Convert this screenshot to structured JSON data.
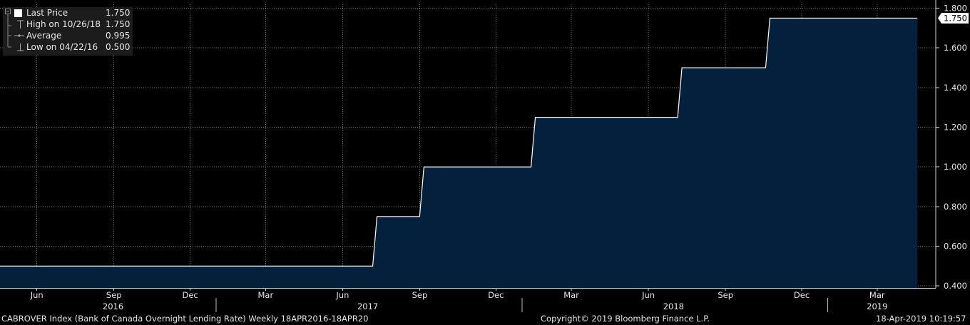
{
  "legend": [
    {
      "label": "Last Price",
      "value": "1.750",
      "icon": "square-icon"
    },
    {
      "label": "High on 10/26/18",
      "value": "1.750",
      "icon": "high-marker-icon"
    },
    {
      "label": "Average",
      "value": "0.995",
      "icon": "average-line-icon"
    },
    {
      "label": "Low on 04/22/16",
      "value": "0.500",
      "icon": "low-marker-icon"
    }
  ],
  "footer": {
    "left": "CABROVER Index (Bank of Canada Overnight Lending Rate)  Weekly 18APR2016-18APR20",
    "center": "Copyright© 2019 Bloomberg Finance L.P.",
    "right": "18-Apr-2019 10:19:57"
  },
  "colors": {
    "background": "#000000",
    "fill": "#05203d",
    "line": "#ffffff",
    "grid": "#7a7a7a",
    "legend_bg": "#1c1c1c"
  },
  "chart_data": {
    "type": "area",
    "step": true,
    "series": [
      {
        "name": "Last Price",
        "points": [
          [
            "2016-04-22",
            0.5
          ],
          [
            "2017-07-12",
            0.75
          ],
          [
            "2017-09-06",
            1.0
          ],
          [
            "2018-01-17",
            1.25
          ],
          [
            "2018-07-11",
            1.5
          ],
          [
            "2018-10-24",
            1.75
          ],
          [
            "2019-04-18",
            1.75
          ]
        ]
      }
    ],
    "last_value_label": "1.750",
    "ylim": [
      0.39,
      1.82
    ],
    "yticks": [
      0.4,
      0.6,
      0.8,
      1.0,
      1.2,
      1.4,
      1.6,
      1.8
    ],
    "ytick_labels": [
      "0.400",
      "0.600",
      "0.800",
      "1.000",
      "1.200",
      "1.400",
      "1.600",
      "1.800"
    ],
    "y_axis_side": "right",
    "xlim": [
      "2016-04-18",
      "2019-05-10"
    ],
    "month_ticks": [
      {
        "date": "2016-06-01",
        "label": "Jun"
      },
      {
        "date": "2016-09-01",
        "label": "Sep"
      },
      {
        "date": "2016-12-01",
        "label": "Dec"
      },
      {
        "date": "2017-03-01",
        "label": "Mar"
      },
      {
        "date": "2017-06-01",
        "label": "Jun"
      },
      {
        "date": "2017-09-01",
        "label": "Sep"
      },
      {
        "date": "2017-12-01",
        "label": "Dec"
      },
      {
        "date": "2018-03-01",
        "label": "Mar"
      },
      {
        "date": "2018-06-01",
        "label": "Jun"
      },
      {
        "date": "2018-09-01",
        "label": "Sep"
      },
      {
        "date": "2018-12-01",
        "label": "Dec"
      },
      {
        "date": "2019-03-01",
        "label": "Mar"
      }
    ],
    "year_ticks": [
      {
        "label": "2016",
        "mid": "2016-08-31",
        "start": null
      },
      {
        "label": "2017",
        "mid": "2017-07-01",
        "start": "2017-01-01"
      },
      {
        "label": "2018",
        "mid": "2018-07-01",
        "start": "2018-01-01"
      },
      {
        "label": "2019",
        "mid": "2019-03-01",
        "start": "2019-01-01"
      }
    ],
    "grid": true,
    "legend_position": "top-left"
  }
}
